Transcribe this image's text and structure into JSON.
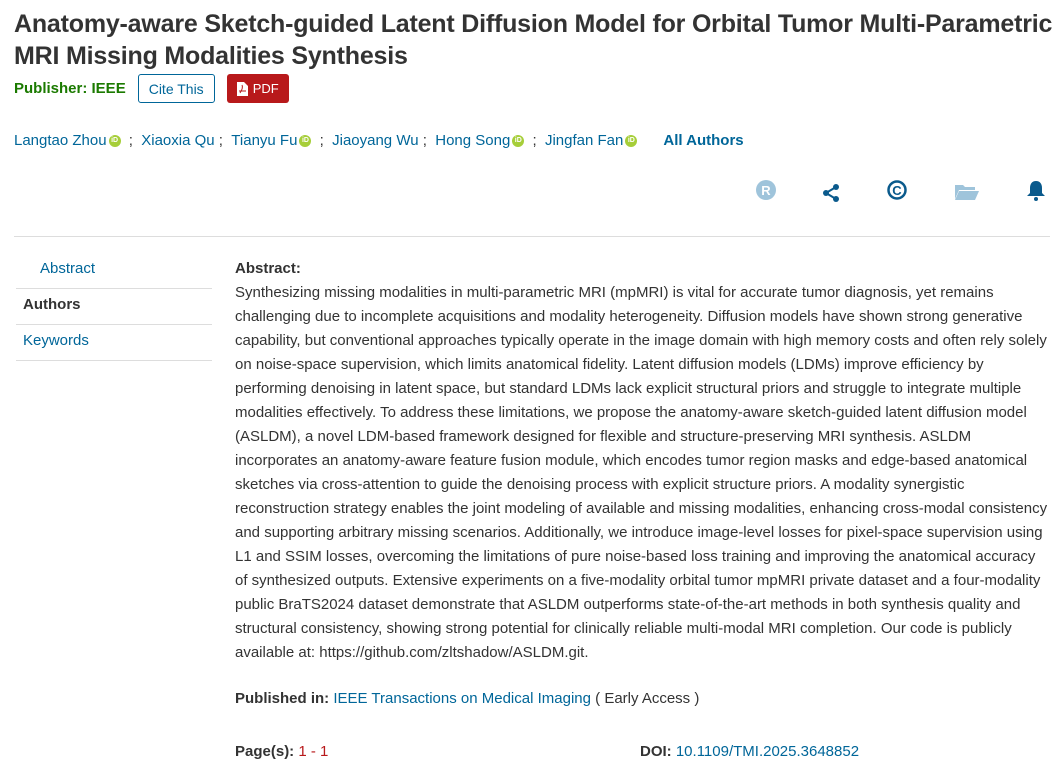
{
  "title": "Anatomy-aware Sketch-guided Latent Diffusion Model for Orbital Tumor Multi-Parametric MRI Missing Modalities Synthesis",
  "publisher": "Publisher:  IEEE",
  "cite_label": "Cite This",
  "pdf_label": "PDF",
  "authors": [
    "Langtao Zhou",
    "Xiaoxia Qu",
    "Tianyu Fu",
    "Jiaoyang Wu",
    "Hong Song",
    "Jingfan Fan"
  ],
  "all_authors": "All Authors",
  "toolbar_icons": [
    "rights-icon",
    "share-icon",
    "copyright-icon",
    "folder-icon",
    "alert-bell-icon"
  ],
  "sidebar": [
    "Abstract",
    "Authors",
    "Keywords"
  ],
  "abstract_label": "Abstract:",
  "abstract": "Synthesizing missing modalities in multi-parametric MRI (mpMRI) is vital for accurate tumor diagnosis, yet remains challenging due to incomplete acquisitions and modality heterogeneity. Diffusion models have shown strong generative capability, but conventional approaches typically operate in the image domain with high memory costs and often rely solely on noise-space supervision, which limits anatomical fidelity. Latent diffusion models (LDMs) improve efficiency by performing denoising in latent space, but standard LDMs lack explicit structural priors and struggle to integrate multiple modalities effectively. To address these limitations, we propose the anatomy-aware sketch-guided latent diffusion model (ASLDM), a novel LDM-based framework designed for flexible and structure-preserving MRI synthesis. ASLDM incorporates an anatomy-aware feature fusion module, which encodes tumor region masks and edge-based anatomical sketches via cross-attention to guide the denoising process with explicit structure priors. A modality synergistic reconstruction strategy enables the joint modeling of available and missing modalities, enhancing cross-modal consistency and supporting arbitrary missing scenarios. Additionally, we introduce image-level losses for pixel-space supervision using L1 and SSIM losses, overcoming the limitations of pure noise-based loss training and improving the anatomical accuracy of synthesized outputs. Extensive experiments on a five-modality orbital tumor mpMRI private dataset and a four-modality public BraTS2024 dataset demonstrate that ASLDM outperforms state-of-the-art methods in both synthesis quality and structural consistency, showing strong potential for clinically reliable multi-modal MRI completion. Our code is publicly available at: https://github.com/zltshadow/ASLDM.git.",
  "published_in_label": "Published in:",
  "journal": "IEEE Transactions on Medical Imaging",
  "early_access": " ( Early Access )",
  "pages_label": "Page(s):",
  "pages": "1 - 1",
  "doi_label": "DOI:",
  "doi": "10.1109/TMI.2025.3648852"
}
